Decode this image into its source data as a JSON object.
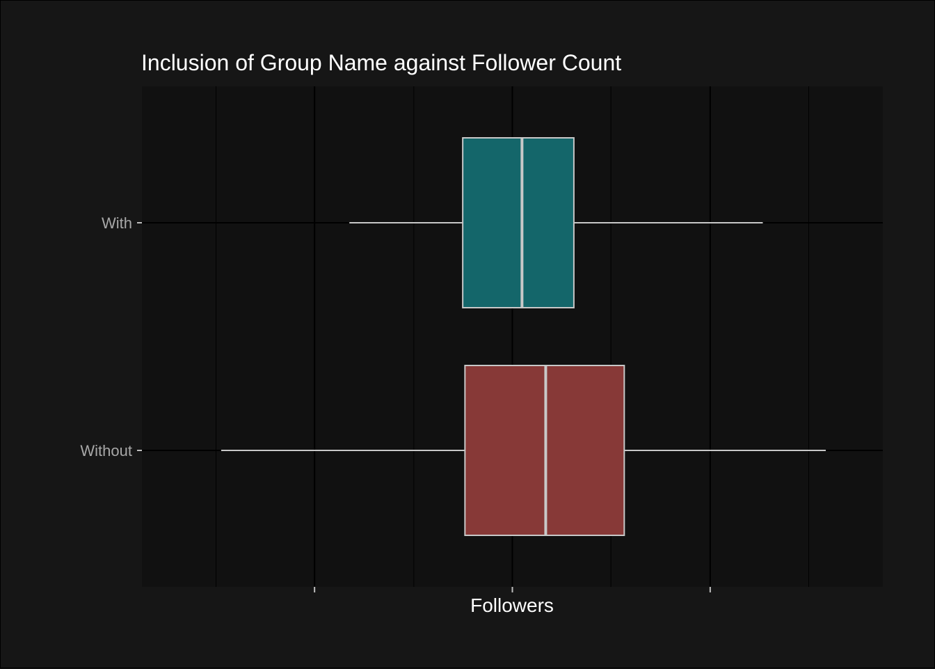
{
  "chart_data": {
    "type": "boxplot",
    "orientation": "horizontal",
    "title": "Inclusion of Group Name against Follower Count",
    "xlabel": "Followers",
    "ylabel": "",
    "x_tick_labels_visible": false,
    "grid": true,
    "legend": "none",
    "categories": [
      "With",
      "Without"
    ],
    "series": [
      {
        "category": "With",
        "color": "#15696d",
        "whisker_low": 0.28,
        "q1": 0.433,
        "median": 0.513,
        "q3": 0.583,
        "whisker_high": 0.838
      },
      {
        "category": "Without",
        "color": "#8b3b39",
        "whisker_low": 0.107,
        "q1": 0.436,
        "median": 0.545,
        "q3": 0.651,
        "whisker_high": 0.923
      }
    ]
  }
}
